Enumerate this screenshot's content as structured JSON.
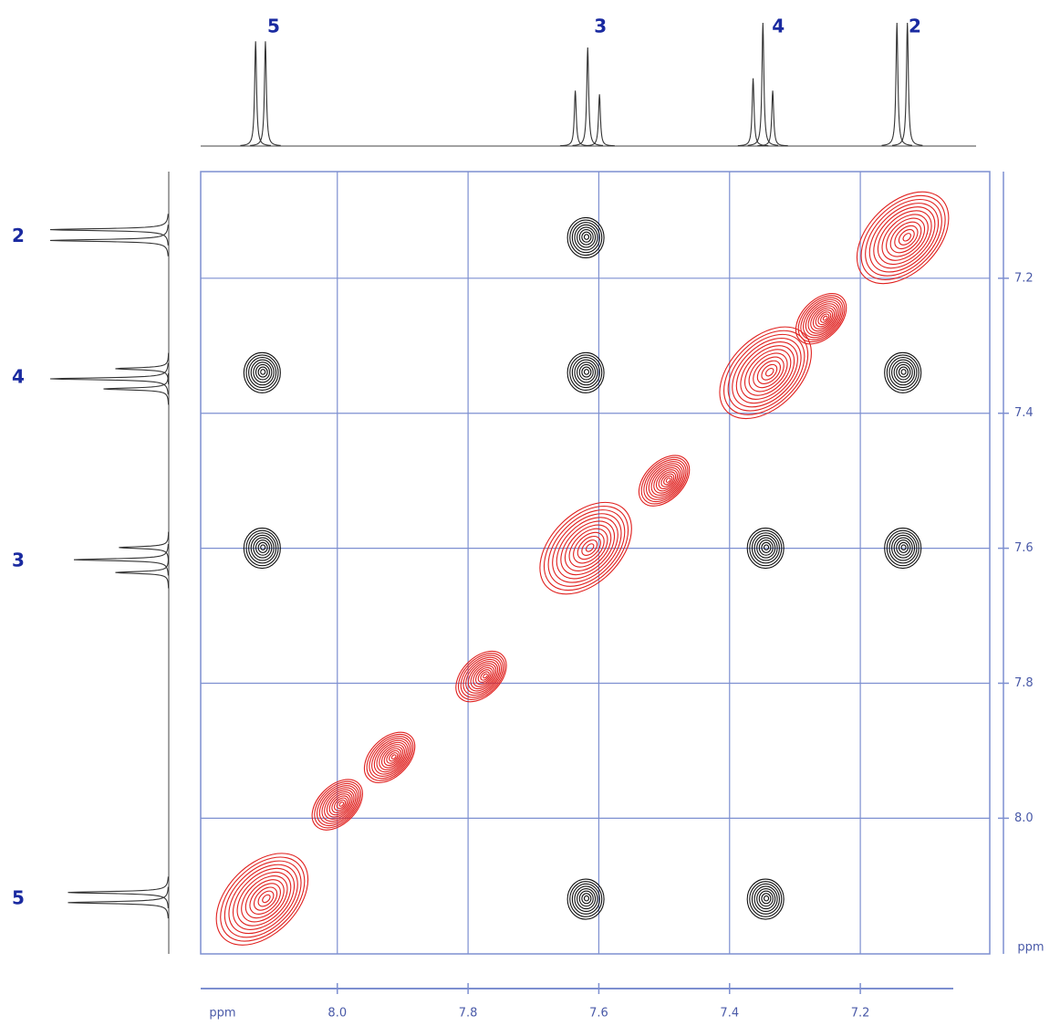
{
  "chart_data": {
    "type": "nmr2d",
    "xlabel": "ppm",
    "ylabel": "ppm",
    "xlim": [
      8.209,
      7.002
    ],
    "ylim": [
      7.042,
      8.201
    ],
    "xticks": [
      {
        "value": 8,
        "label": "8.0"
      },
      7.8,
      7.6,
      7.4,
      7.2
    ],
    "yticks": [
      7.2,
      7.4,
      7.6,
      7.8,
      {
        "value": 8,
        "label": "8.0"
      }
    ],
    "grid": true,
    "grid_color": "#7d8fd0",
    "spectrum": {
      "lines": [
        {
          "ppm": 8.125,
          "intensity": 0.85
        },
        {
          "ppm": 8.11,
          "intensity": 0.85
        },
        {
          "ppm": 7.636,
          "intensity": 0.45
        },
        {
          "ppm": 7.617,
          "intensity": 0.8
        },
        {
          "ppm": 7.599,
          "intensity": 0.42
        },
        {
          "ppm": 7.364,
          "intensity": 0.55
        },
        {
          "ppm": 7.349,
          "intensity": 1.0
        },
        {
          "ppm": 7.334,
          "intensity": 0.45
        },
        {
          "ppm": 7.144,
          "intensity": 1.0
        },
        {
          "ppm": 7.128,
          "intensity": 1.0
        }
      ],
      "labels": [
        {
          "text": "5",
          "ppm": 8.117
        },
        {
          "text": "3",
          "ppm": 7.617
        },
        {
          "text": "4",
          "ppm": 7.345
        },
        {
          "text": "2",
          "ppm": 7.136
        }
      ]
    },
    "series": [
      {
        "color": "#111111",
        "x": [
          7.62,
          8.115,
          7.62,
          7.135,
          8.115,
          7.345,
          7.135,
          7.62,
          7.345
        ],
        "values": [
          7.14,
          7.34,
          7.34,
          7.34,
          7.6,
          7.6,
          7.6,
          8.12,
          8.12
        ]
      },
      {
        "color": "#e0201e",
        "x": [
          7.135,
          7.26,
          7.345,
          7.5,
          7.62,
          7.78,
          7.92,
          8.0,
          8.115
        ],
        "values": [
          7.14,
          7.26,
          7.34,
          7.5,
          7.6,
          7.79,
          7.91,
          7.98,
          8.12
        ]
      }
    ]
  }
}
